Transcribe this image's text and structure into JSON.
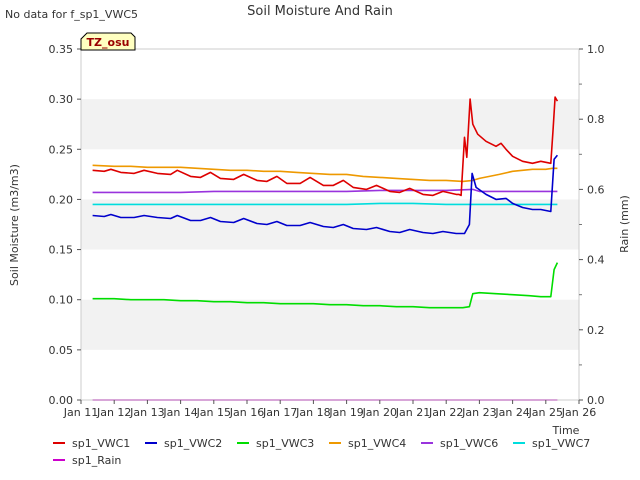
{
  "no_data_note": "No data for f_sp1_VWC5",
  "site_badge": "TZ_osu",
  "colors": {
    "sp1_VWC1": "#dd0000",
    "sp1_VWC2": "#0000cc",
    "sp1_VWC3": "#00dd00",
    "sp1_VWC4": "#ee9900",
    "sp1_VWC6": "#9933dd",
    "sp1_VWC7": "#00dddd",
    "sp1_Rain": "#cc00cc",
    "band": "#f2f2f2",
    "badge_fill": "#ffffc0",
    "badge_text": "#990000"
  },
  "chart_data": {
    "type": "line",
    "title": "Soil Moisture And Rain",
    "xlabel": "Time",
    "ylabel": "Soil Moisture (m3/m3)",
    "y2label": "Rain (mm)",
    "xlim": [
      11,
      26
    ],
    "ylim": [
      0,
      0.35
    ],
    "y2lim": [
      0,
      1.0
    ],
    "x_ticks": [
      11,
      12,
      13,
      14,
      15,
      16,
      17,
      18,
      19,
      20,
      21,
      22,
      23,
      24,
      25,
      26
    ],
    "x_tick_labels": [
      "Jan 11",
      "Jan 12",
      "Jan 13",
      "Jan 14",
      "Jan 15",
      "Jan 16",
      "Jan 17",
      "Jan 18",
      "Jan 19",
      "Jan 20",
      "Jan 21",
      "Jan 22",
      "Jan 23",
      "Jan 24",
      "Jan 25",
      "Jan 26"
    ],
    "y_ticks": [
      0.0,
      0.05,
      0.1,
      0.15,
      0.2,
      0.25,
      0.3,
      0.35
    ],
    "y_tick_labels": [
      "0.00",
      "0.05",
      "0.10",
      "0.15",
      "0.20",
      "0.25",
      "0.30",
      "0.35"
    ],
    "y2_ticks": [
      0.0,
      0.2,
      0.4,
      0.6,
      0.8,
      1.0
    ],
    "y2_tick_labels": [
      "0.0",
      "0.2",
      "0.4",
      "0.6",
      "0.8",
      "1.0"
    ],
    "y2_minor_ticks": [
      0.1,
      0.3,
      0.5,
      0.7,
      0.9
    ],
    "bands": [
      [
        0.05,
        0.1
      ],
      [
        0.15,
        0.2
      ],
      [
        0.25,
        0.3
      ]
    ],
    "legend_position": "bottom",
    "series": [
      {
        "name": "sp1_VWC1",
        "axis": "y",
        "x": [
          11.35,
          11.7,
          11.9,
          12.2,
          12.6,
          12.9,
          13.3,
          13.7,
          13.9,
          14.3,
          14.6,
          14.9,
          15.2,
          15.6,
          15.9,
          16.3,
          16.6,
          16.9,
          17.2,
          17.6,
          17.9,
          18.3,
          18.6,
          18.9,
          19.2,
          19.6,
          19.9,
          20.3,
          20.6,
          20.9,
          21.3,
          21.6,
          21.9,
          22.3,
          22.38,
          22.45,
          22.55,
          22.62,
          22.72,
          22.8,
          22.95,
          23.2,
          23.5,
          23.65,
          23.8,
          24.0,
          24.3,
          24.6,
          24.85,
          25.0,
          25.15,
          25.22,
          25.28,
          25.35
        ],
        "values": [
          0.229,
          0.228,
          0.23,
          0.227,
          0.226,
          0.229,
          0.226,
          0.225,
          0.229,
          0.223,
          0.222,
          0.227,
          0.221,
          0.22,
          0.225,
          0.219,
          0.218,
          0.223,
          0.216,
          0.216,
          0.222,
          0.214,
          0.214,
          0.219,
          0.212,
          0.21,
          0.214,
          0.208,
          0.207,
          0.211,
          0.205,
          0.204,
          0.208,
          0.205,
          0.205,
          0.204,
          0.262,
          0.242,
          0.3,
          0.275,
          0.265,
          0.258,
          0.253,
          0.256,
          0.25,
          0.243,
          0.238,
          0.236,
          0.238,
          0.237,
          0.236,
          0.27,
          0.302,
          0.298
        ]
      },
      {
        "name": "sp1_VWC2",
        "axis": "y",
        "x": [
          11.35,
          11.7,
          11.9,
          12.2,
          12.6,
          12.9,
          13.3,
          13.7,
          13.9,
          14.3,
          14.6,
          14.9,
          15.2,
          15.6,
          15.9,
          16.3,
          16.6,
          16.9,
          17.2,
          17.6,
          17.9,
          18.3,
          18.6,
          18.9,
          19.2,
          19.6,
          19.9,
          20.3,
          20.6,
          20.9,
          21.3,
          21.6,
          21.9,
          22.3,
          22.55,
          22.7,
          22.78,
          22.9,
          23.2,
          23.5,
          23.8,
          24.0,
          24.3,
          24.6,
          24.85,
          25.0,
          25.15,
          25.25,
          25.35
        ],
        "values": [
          0.184,
          0.183,
          0.185,
          0.182,
          0.182,
          0.184,
          0.182,
          0.181,
          0.184,
          0.179,
          0.179,
          0.182,
          0.178,
          0.177,
          0.181,
          0.176,
          0.175,
          0.178,
          0.174,
          0.174,
          0.177,
          0.173,
          0.172,
          0.175,
          0.171,
          0.17,
          0.172,
          0.168,
          0.167,
          0.17,
          0.167,
          0.166,
          0.168,
          0.166,
          0.166,
          0.175,
          0.226,
          0.212,
          0.205,
          0.2,
          0.201,
          0.196,
          0.192,
          0.19,
          0.19,
          0.189,
          0.188,
          0.24,
          0.244
        ]
      },
      {
        "name": "sp1_VWC3",
        "axis": "y",
        "x": [
          11.35,
          12.0,
          12.5,
          13.0,
          13.5,
          14.0,
          14.5,
          15.0,
          15.5,
          16.0,
          16.5,
          17.0,
          17.5,
          18.0,
          18.5,
          19.0,
          19.5,
          20.0,
          20.5,
          21.0,
          21.5,
          22.0,
          22.5,
          22.7,
          22.8,
          23.0,
          23.5,
          24.0,
          24.5,
          24.85,
          25.0,
          25.15,
          25.25,
          25.35
        ],
        "values": [
          0.101,
          0.101,
          0.1,
          0.1,
          0.1,
          0.099,
          0.099,
          0.098,
          0.098,
          0.097,
          0.097,
          0.096,
          0.096,
          0.096,
          0.095,
          0.095,
          0.094,
          0.094,
          0.093,
          0.093,
          0.092,
          0.092,
          0.092,
          0.093,
          0.106,
          0.107,
          0.106,
          0.105,
          0.104,
          0.103,
          0.103,
          0.103,
          0.13,
          0.137
        ]
      },
      {
        "name": "sp1_VWC4",
        "axis": "y",
        "x": [
          11.35,
          12.0,
          12.5,
          13.0,
          13.5,
          14.0,
          14.5,
          15.0,
          15.5,
          16.0,
          16.5,
          17.0,
          17.5,
          18.0,
          18.5,
          19.0,
          19.5,
          20.0,
          20.5,
          21.0,
          21.5,
          22.0,
          22.5,
          22.8,
          23.0,
          23.3,
          23.6,
          24.0,
          24.3,
          24.6,
          25.0,
          25.2,
          25.35
        ],
        "values": [
          0.234,
          0.233,
          0.233,
          0.232,
          0.232,
          0.232,
          0.231,
          0.23,
          0.229,
          0.229,
          0.228,
          0.228,
          0.227,
          0.226,
          0.225,
          0.225,
          0.223,
          0.222,
          0.221,
          0.22,
          0.219,
          0.219,
          0.218,
          0.219,
          0.221,
          0.223,
          0.225,
          0.228,
          0.229,
          0.23,
          0.23,
          0.231,
          0.231
        ]
      },
      {
        "name": "sp1_VWC6",
        "axis": "y",
        "x": [
          11.35,
          12.0,
          13.0,
          14.0,
          15.0,
          16.0,
          17.0,
          18.0,
          19.0,
          20.0,
          21.0,
          22.0,
          22.8,
          23.0,
          24.0,
          25.0,
          25.35
        ],
        "values": [
          0.207,
          0.207,
          0.207,
          0.207,
          0.208,
          0.208,
          0.208,
          0.208,
          0.208,
          0.209,
          0.209,
          0.209,
          0.21,
          0.208,
          0.208,
          0.208,
          0.208
        ]
      },
      {
        "name": "sp1_VWC7",
        "axis": "y",
        "x": [
          11.35,
          12.0,
          13.0,
          14.0,
          15.0,
          16.0,
          17.0,
          18.0,
          19.0,
          20.0,
          21.0,
          22.0,
          23.0,
          24.0,
          25.0,
          25.35
        ],
        "values": [
          0.195,
          0.195,
          0.195,
          0.195,
          0.195,
          0.195,
          0.195,
          0.195,
          0.195,
          0.196,
          0.196,
          0.195,
          0.195,
          0.195,
          0.195,
          0.195
        ]
      },
      {
        "name": "sp1_Rain",
        "axis": "y2",
        "x": [
          11.35,
          25.35
        ],
        "values": [
          0.0,
          0.0
        ]
      }
    ]
  }
}
